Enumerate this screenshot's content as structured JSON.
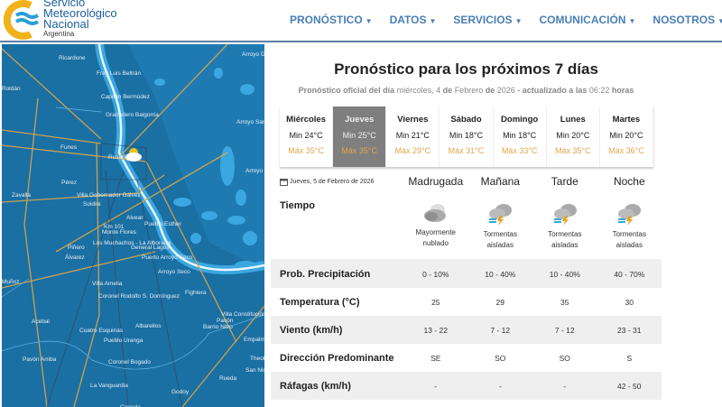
{
  "logo": {
    "line1": "Servicio",
    "line2": "Meteorológico",
    "line3": "Nacional",
    "line4": "Argentina"
  },
  "nav": [
    "PRONÓSTICO",
    "DATOS",
    "SERVICIOS",
    "COMUNICACIÓN",
    "NOSOTROS"
  ],
  "map": {
    "labels": [
      "Ricardone",
      "Fray Luis Beltrán",
      "Capitán Bermúdez",
      "Granadero Baigorria",
      "Funes",
      "Rosario",
      "Pérez",
      "Zavalla",
      "Villa Gobernador Gálvez",
      "Soldini",
      "Alvear",
      "Pueblo Esther",
      "Km 101",
      "Monte Flores",
      "Los Muchachos - La Alborada",
      "General Lagos",
      "Piñero",
      "Álvarez",
      "Puerto Arroyo Seco",
      "Arroyo Seco",
      "Villa Amelia",
      "Fighiera",
      "Coronel Rodolfo S. Domínguez",
      "Villa Constitución",
      "Acebal",
      "Pavón",
      "Albarellos",
      "Cuatro Esquinas",
      "Barrio Nitro",
      "Empalme",
      "Pueblo Uranga",
      "Pavón Arriba",
      "Coronel Bogado",
      "Theobald",
      "San Nicolás",
      "Rueda",
      "La Vanguardia",
      "Godoy",
      "Cepeda",
      "Muñoz",
      "Arroyo De",
      "Arroyo San L",
      "Arroyo Do",
      "Roldán"
    ]
  },
  "title": "Pronóstico para los próximos 7 días",
  "subtitle": {
    "a": "Pronóstico oficial del día",
    "b": "miércoles, 4",
    "c": "de",
    "d": "Febrero",
    "e": "de",
    "f": "2026",
    "g": "- actualizado a las",
    "h": "06:22",
    "i": "horas"
  },
  "days": [
    {
      "name": "Miércoles",
      "min": "Min 24°C",
      "max": "Máx 35°C"
    },
    {
      "name": "Jueves",
      "min": "Min 25°C",
      "max": "Máx 35°C",
      "selected": true
    },
    {
      "name": "Viernes",
      "min": "Min 21°C",
      "max": "Máx 29°C"
    },
    {
      "name": "Sábado",
      "min": "Min 18°C",
      "max": "Máx 31°C"
    },
    {
      "name": "Domingo",
      "min": "Min 18°C",
      "max": "Máx 33°C"
    },
    {
      "name": "Lunes",
      "min": "Min 20°C",
      "max": "Máx 35°C"
    },
    {
      "name": "Martes",
      "min": "Min 20°C",
      "max": "Máx 36°C"
    }
  ],
  "table": {
    "date": "Jueves, 5 de Febrero de 2026",
    "periods": [
      "Madrugada",
      "Mañana",
      "Tarde",
      "Noche"
    ],
    "tiempo_label": "Tiempo",
    "weather": [
      {
        "icon": "mostly-cloudy-icon",
        "l1": "Mayormente",
        "l2": "nublado"
      },
      {
        "icon": "thunderstorm-icon",
        "l1": "Tormentas",
        "l2": "aisladas"
      },
      {
        "icon": "thunderstorm-icon",
        "l1": "Tormentas",
        "l2": "aisladas"
      },
      {
        "icon": "thunderstorm-icon",
        "l1": "Tormentas",
        "l2": "aisladas"
      }
    ],
    "rows": [
      {
        "label": "Prob. Precipitación",
        "values": [
          "0 - 10%",
          "10 - 40%",
          "10 - 40%",
          "40 - 70%"
        ]
      },
      {
        "label": "Temperatura (°C)",
        "values": [
          "25",
          "29",
          "35",
          "30"
        ]
      },
      {
        "label": "Viento (km/h)",
        "values": [
          "13 - 22",
          "7 - 12",
          "7 - 12",
          "23 - 31"
        ]
      },
      {
        "label": "Dirección Predominante",
        "values": [
          "SE",
          "SO",
          "SO",
          "S"
        ]
      },
      {
        "label": "Ráfagas (km/h)",
        "values": [
          "-",
          "-",
          "-",
          "42 - 50"
        ]
      }
    ]
  },
  "colors": {
    "nav": "#4a7fb5",
    "selected_day": "#7f7f7f",
    "max_temp": "#e0a64a",
    "map_bg": "#1a6fa3"
  }
}
